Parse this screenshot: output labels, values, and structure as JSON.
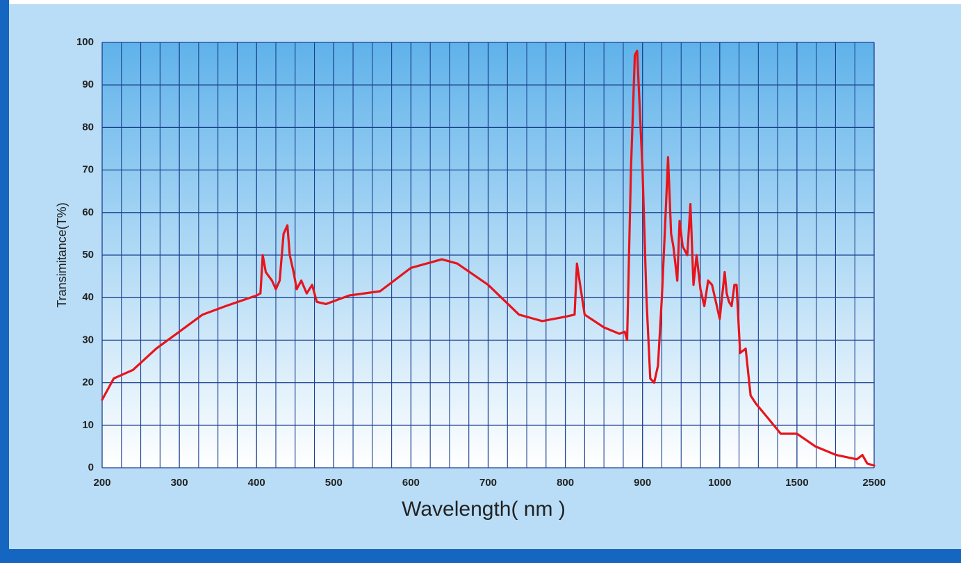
{
  "chart_data": {
    "type": "line",
    "x_label": "Wavelength( nm )",
    "y_label": "Transimitance(T%)",
    "xlim": [
      200,
      2500
    ],
    "ylim": [
      0,
      100
    ],
    "xticks": [
      200,
      300,
      400,
      500,
      600,
      700,
      800,
      900,
      1000,
      1500,
      2500
    ],
    "yticks": [
      0,
      10,
      20,
      30,
      40,
      50,
      60,
      70,
      80,
      90,
      100
    ],
    "grid": true,
    "series": [
      {
        "name": "Transimitance",
        "color": "#e8141c",
        "x": [
          200,
          215,
          240,
          270,
          300,
          330,
          360,
          400,
          405,
          408,
          412,
          420,
          425,
          430,
          435,
          440,
          443,
          448,
          452,
          458,
          465,
          472,
          478,
          490,
          520,
          560,
          600,
          640,
          660,
          700,
          740,
          770,
          800,
          812,
          815,
          820,
          825,
          850,
          870,
          877,
          880,
          885,
          890,
          893,
          900,
          905,
          910,
          915,
          920,
          925,
          930,
          933,
          937,
          940,
          945,
          948,
          952,
          958,
          962,
          966,
          970,
          975,
          980,
          985,
          990,
          1000,
          1032,
          1045,
          1060,
          1077,
          1095,
          1109,
          1132,
          1168,
          1200,
          1236,
          1305,
          1395,
          1500,
          1741,
          2009,
          2277,
          2348,
          2411,
          2500
        ],
        "values": [
          16,
          21,
          23,
          28,
          32,
          36,
          38,
          40.5,
          41,
          50,
          46,
          44,
          42,
          44,
          55,
          57,
          50,
          46,
          42,
          44,
          41,
          43,
          39,
          38.5,
          40.5,
          41.5,
          47,
          49,
          48,
          43,
          36,
          34.5,
          35.5,
          36,
          48,
          42,
          36,
          33,
          31.5,
          32,
          30,
          70,
          97,
          98,
          70,
          40,
          21,
          20,
          24,
          40,
          60,
          73,
          55,
          52,
          44,
          58,
          52,
          50,
          62,
          43,
          50,
          42,
          38,
          44,
          43,
          35,
          46,
          41,
          39,
          38,
          43,
          43,
          27,
          28,
          17,
          15,
          12,
          8,
          8,
          5,
          3,
          2,
          3,
          1,
          0.5
        ]
      }
    ]
  }
}
